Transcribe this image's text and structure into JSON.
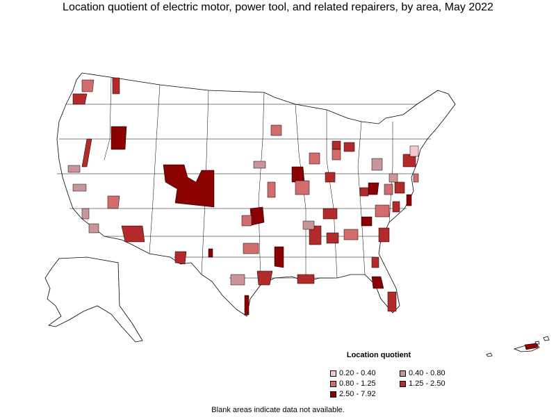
{
  "title": "Location quotient of electric motor, power tool, and related repairers, by area, May 2022",
  "legend": {
    "title": "Location quotient",
    "items": [
      {
        "label": "0.20 - 0.40",
        "color": "#f7c7cc"
      },
      {
        "label": "0.40 - 0.80",
        "color": "#c99598"
      },
      {
        "label": "0.80 - 1.25",
        "color": "#d36c6c"
      },
      {
        "label": "1.25 - 2.50",
        "color": "#b22a2a"
      },
      {
        "label": "2.50 - 7.92",
        "color": "#8b0000"
      }
    ]
  },
  "footnote": "Blank areas indicate data not available.",
  "colors": {
    "outline": "#000000",
    "blank": "#ffffff"
  }
}
